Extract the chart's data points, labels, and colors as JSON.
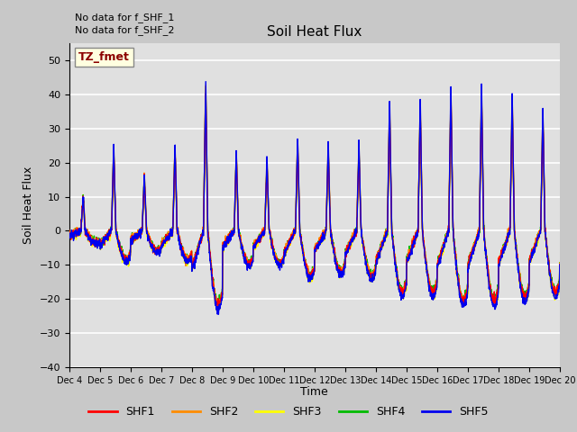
{
  "title": "Soil Heat Flux",
  "ylabel": "Soil Heat Flux",
  "xlabel": "Time",
  "ylim": [
    -40,
    55
  ],
  "yticks": [
    -40,
    -30,
    -20,
    -10,
    0,
    10,
    20,
    30,
    40,
    50
  ],
  "note1": "No data for f_SHF_1",
  "note2": "No data for f_SHF_2",
  "legend_label": "TZ_fmet",
  "colors": {
    "SHF1": "#FF0000",
    "SHF2": "#FF8C00",
    "SHF3": "#FFFF00",
    "SHF4": "#00BB00",
    "SHF5": "#0000EE"
  },
  "fig_facecolor": "#C8C8C8",
  "axes_facecolor": "#E0E0E0",
  "n_days": 16,
  "start_day": 4
}
